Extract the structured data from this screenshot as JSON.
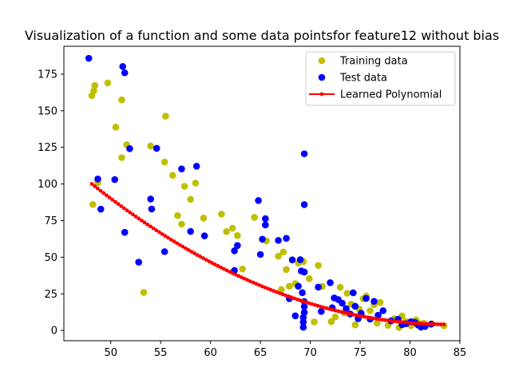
{
  "chart_data": {
    "type": "scatter",
    "title": "Visualization of a function and some data pointsfor feature12 without bias",
    "xlabel": "",
    "ylabel": "",
    "xlim": [
      45.3,
      85.0
    ],
    "ylim": [
      -7,
      194
    ],
    "xticks": [
      50,
      55,
      60,
      65,
      70,
      75,
      80,
      85
    ],
    "yticks": [
      0,
      25,
      50,
      75,
      100,
      125,
      150,
      175
    ],
    "grid": false,
    "legend_position": "top-right",
    "series": [
      {
        "name": "Training data",
        "type": "scatter",
        "color": "#bfbf00",
        "points": [
          [
            48.1,
            160.3
          ],
          [
            48.3,
            163.6
          ],
          [
            48.4,
            167.2
          ],
          [
            48.2,
            86.0
          ],
          [
            48.7,
            100.8
          ],
          [
            49.7,
            169.0
          ],
          [
            50.5,
            138.8
          ],
          [
            51.1,
            157.4
          ],
          [
            51.1,
            118.0
          ],
          [
            51.6,
            126.8
          ],
          [
            53.3,
            26.0
          ],
          [
            54.0,
            125.9
          ],
          [
            55.5,
            146.3
          ],
          [
            55.4,
            115.0
          ],
          [
            56.2,
            105.9
          ],
          [
            56.7,
            78.4
          ],
          [
            57.1,
            72.6
          ],
          [
            57.4,
            98.4
          ],
          [
            58.0,
            89.5
          ],
          [
            58.5,
            100.6
          ],
          [
            59.3,
            76.7
          ],
          [
            61.1,
            79.4
          ],
          [
            61.6,
            67.5
          ],
          [
            62.2,
            69.8
          ],
          [
            62.7,
            64.8
          ],
          [
            63.2,
            42.0
          ],
          [
            64.4,
            77.2
          ],
          [
            65.6,
            61.1
          ],
          [
            66.8,
            50.7
          ],
          [
            67.1,
            28.0
          ],
          [
            67.3,
            53.6
          ],
          [
            67.6,
            41.6
          ],
          [
            67.9,
            30.2
          ],
          [
            68.5,
            32.0
          ],
          [
            68.8,
            46.0
          ],
          [
            69.3,
            47.1
          ],
          [
            69.9,
            35.4
          ],
          [
            70.4,
            5.8
          ],
          [
            70.8,
            44.4
          ],
          [
            71.2,
            30.1
          ],
          [
            72.1,
            6.0
          ],
          [
            72.5,
            9.2
          ],
          [
            73.0,
            29.5
          ],
          [
            73.4,
            12.0
          ],
          [
            73.7,
            25.4
          ],
          [
            74.1,
            18.0
          ],
          [
            74.5,
            3.8
          ],
          [
            74.9,
            14.6
          ],
          [
            75.3,
            21.7
          ],
          [
            75.6,
            23.5
          ],
          [
            76.0,
            13.5
          ],
          [
            76.4,
            17.7
          ],
          [
            76.7,
            5.0
          ],
          [
            77.0,
            19.1
          ],
          [
            77.8,
            3.5
          ],
          [
            78.4,
            8.0
          ],
          [
            78.9,
            2.1
          ],
          [
            79.2,
            9.9
          ],
          [
            79.6,
            6.1
          ],
          [
            80.1,
            3.3
          ],
          [
            80.6,
            7.2
          ],
          [
            81.0,
            4.6
          ],
          [
            81.4,
            4.9
          ],
          [
            82.2,
            4.6
          ],
          [
            83.4,
            3.2
          ]
        ]
      },
      {
        "name": "Test data",
        "type": "scatter",
        "color": "#0000ff",
        "points": [
          [
            47.8,
            185.8
          ],
          [
            48.7,
            103.4
          ],
          [
            49.0,
            82.8
          ],
          [
            50.4,
            103.0
          ],
          [
            51.2,
            180.2
          ],
          [
            51.4,
            175.9
          ],
          [
            51.4,
            67.0
          ],
          [
            51.9,
            124.1
          ],
          [
            52.8,
            46.6
          ],
          [
            54.0,
            89.7
          ],
          [
            54.1,
            82.9
          ],
          [
            54.6,
            124.3
          ],
          [
            55.4,
            53.8
          ],
          [
            57.1,
            110.3
          ],
          [
            58.0,
            67.6
          ],
          [
            58.6,
            112.1
          ],
          [
            59.4,
            64.6
          ],
          [
            62.4,
            41.0
          ],
          [
            62.4,
            54.4
          ],
          [
            62.7,
            58.0
          ],
          [
            64.8,
            88.7
          ],
          [
            65.0,
            51.9
          ],
          [
            65.2,
            62.3
          ],
          [
            65.5,
            76.3
          ],
          [
            65.5,
            72.0
          ],
          [
            66.8,
            61.5
          ],
          [
            67.6,
            62.9
          ],
          [
            67.9,
            21.7
          ],
          [
            68.2,
            48.2
          ],
          [
            68.5,
            10.0
          ],
          [
            68.8,
            30.2
          ],
          [
            69.0,
            48.3
          ],
          [
            69.1,
            40.6
          ],
          [
            69.2,
            25.8
          ],
          [
            69.3,
            8.9
          ],
          [
            69.3,
            5.7
          ],
          [
            69.3,
            2.2
          ],
          [
            69.4,
            120.6
          ],
          [
            69.4,
            85.9
          ],
          [
            69.4,
            39.9
          ],
          [
            69.4,
            19.7
          ],
          [
            69.4,
            16.3
          ],
          [
            69.4,
            12.3
          ],
          [
            70.8,
            29.6
          ],
          [
            71.1,
            13.0
          ],
          [
            72.0,
            32.6
          ],
          [
            72.2,
            15.5
          ],
          [
            72.4,
            22.2
          ],
          [
            72.8,
            21.1
          ],
          [
            73.2,
            18.6
          ],
          [
            73.6,
            14.9
          ],
          [
            74.0,
            11.2
          ],
          [
            74.3,
            25.7
          ],
          [
            74.5,
            16.5
          ],
          [
            74.8,
            8.0
          ],
          [
            75.1,
            11.7
          ],
          [
            75.6,
            21.9
          ],
          [
            76.0,
            7.7
          ],
          [
            76.4,
            19.9
          ],
          [
            76.8,
            10.4
          ],
          [
            77.3,
            13.5
          ],
          [
            78.1,
            6.5
          ],
          [
            78.8,
            7.6
          ],
          [
            79.2,
            3.9
          ],
          [
            79.6,
            4.6
          ],
          [
            80.1,
            6.0
          ],
          [
            80.5,
            5.5
          ],
          [
            80.8,
            3.7
          ],
          [
            81.1,
            2.3
          ],
          [
            81.5,
            2.7
          ],
          [
            82.1,
            4.3
          ]
        ]
      },
      {
        "name": "Learned Polynomial",
        "type": "line",
        "color": "#ff0000",
        "coefficients": [
          0.0756,
          -12.6576,
          533.96
        ],
        "x_range": [
          48.1,
          83.4
        ],
        "samples": 120
      }
    ]
  }
}
